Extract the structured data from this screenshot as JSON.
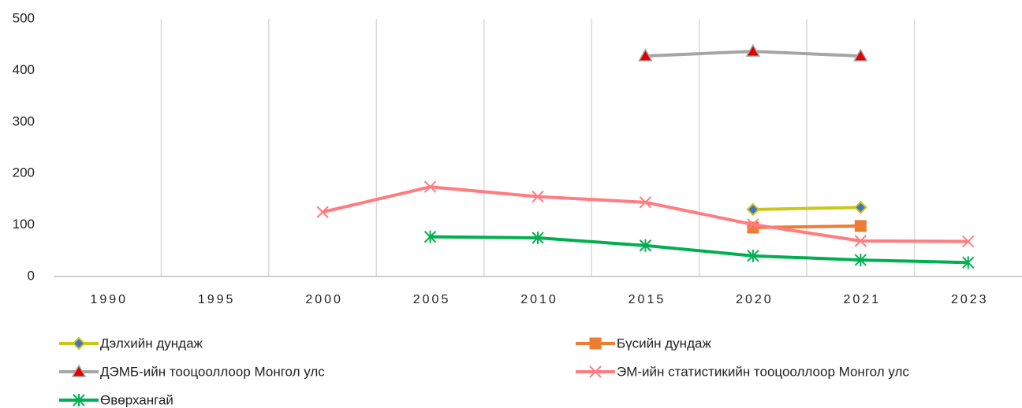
{
  "chart_data": {
    "type": "line",
    "categories": [
      "1990",
      "1995",
      "2000",
      "2005",
      "2010",
      "2015",
      "2020",
      "2021",
      "2023"
    ],
    "series": [
      {
        "name": "Дэлхийн дундаж",
        "color": "#c9c818",
        "marker": "diamond",
        "marker_color": "#4472c4",
        "values": [
          null,
          null,
          null,
          null,
          null,
          null,
          130,
          134,
          null
        ]
      },
      {
        "name": "Бүсийн дундаж",
        "color": "#ed7d31",
        "marker": "square",
        "marker_color": "#ed7d31",
        "values": [
          null,
          null,
          null,
          null,
          null,
          null,
          95,
          98,
          null
        ]
      },
      {
        "name": "ДЭМБ-ийн тооцооллоор  Монгол улс",
        "color": "#a5a5a5",
        "marker": "triangle",
        "marker_color": "#e00000",
        "values": [
          null,
          null,
          null,
          null,
          null,
          428,
          437,
          428,
          null
        ]
      },
      {
        "name": "ЭМ-ийн статистикийн тооцооллоор Монгол улс",
        "color": "#ff7c80",
        "marker": "x",
        "marker_color": "#ff7c80",
        "values": [
          null,
          null,
          125,
          174,
          155,
          144,
          101,
          69,
          68
        ]
      },
      {
        "name": "Өвөрхангай",
        "color": "#00b050",
        "marker": "star",
        "marker_color": "#00b050",
        "values": [
          null,
          null,
          null,
          77,
          75,
          60,
          40,
          32,
          27
        ]
      }
    ],
    "ylim": [
      0,
      500
    ],
    "yticks": [
      0,
      100,
      200,
      300,
      400,
      500
    ],
    "grid": "vertical",
    "legend": "bottom"
  }
}
